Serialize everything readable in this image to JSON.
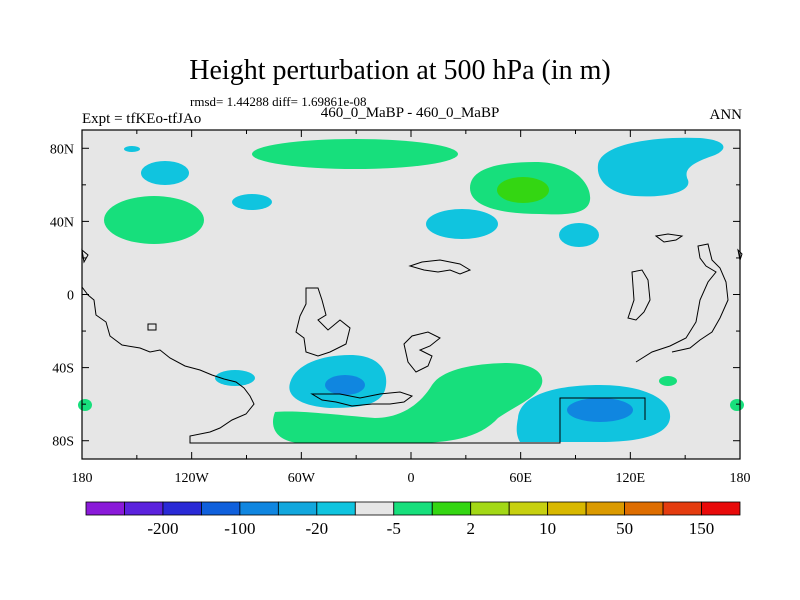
{
  "title": "Height perturbation at 500 hPa (in m)",
  "stats": "rmsd= 1.44288 diff= 1.69861e-08",
  "left_label": "Expt = tfKEo-tfJAo",
  "center_label": "460_0_MaBP - 460_0_MaBP",
  "right_label": "ANN",
  "chart_data": {
    "type": "heatmap",
    "map_projection": "cylindrical equidistant",
    "x_range": [
      -180,
      180
    ],
    "y_range": [
      -90,
      90
    ],
    "x_ticks": [
      "180",
      "120W",
      "60W",
      "0",
      "60E",
      "120E",
      "180"
    ],
    "y_ticks": [
      "80N",
      "40N",
      "0",
      "40S",
      "80S"
    ],
    "background_color": "#e6e6e6",
    "colorbar": {
      "colors": [
        "#8a1ad9",
        "#5b22dd",
        "#2a2ad6",
        "#1060dc",
        "#1086e0",
        "#12a7dd",
        "#10c4df",
        "#e6e6e6",
        "#17df7c",
        "#34d612",
        "#a3d816",
        "#c7d010",
        "#d8b800",
        "#db9a00",
        "#de6d00",
        "#e43c0f",
        "#e80a0a"
      ],
      "labels": [
        "-200",
        "-100",
        "-20",
        "-5",
        "2",
        "10",
        "50",
        "150"
      ]
    },
    "anomalies": [
      {
        "lon": -130,
        "lat": 61,
        "value": -5
      },
      {
        "lon": -150,
        "lat": 79,
        "value": -5
      },
      {
        "lon": -145,
        "lat": 40,
        "value": 5
      },
      {
        "lon": -93,
        "lat": 50,
        "value": -5
      },
      {
        "lon": -70,
        "lat": 77,
        "value": 5
      },
      {
        "lon": -5,
        "lat": 77,
        "value": 5
      },
      {
        "lon": 60,
        "lat": 56,
        "value": 5
      },
      {
        "lon": 61,
        "lat": 58,
        "value": 10
      },
      {
        "lon": 23,
        "lat": 40,
        "value": -5
      },
      {
        "lon": 92,
        "lat": 33,
        "value": -5
      },
      {
        "lon": 150,
        "lat": 72,
        "value": -5
      },
      {
        "lon": -100,
        "lat": -46,
        "value": -5
      },
      {
        "lon": -38,
        "lat": -52,
        "value": -5
      },
      {
        "lon": -35,
        "lat": -50,
        "value": -20
      },
      {
        "lon": 10,
        "lat": -65,
        "value": 5
      },
      {
        "lon": 105,
        "lat": -66,
        "value": -5
      },
      {
        "lon": 108,
        "lat": -64,
        "value": -20
      },
      {
        "lon": 140,
        "lat": -48,
        "value": 5
      },
      {
        "lon": -178,
        "lat": -62,
        "value": 5
      },
      {
        "lon": 176,
        "lat": -62,
        "value": 5
      }
    ]
  }
}
